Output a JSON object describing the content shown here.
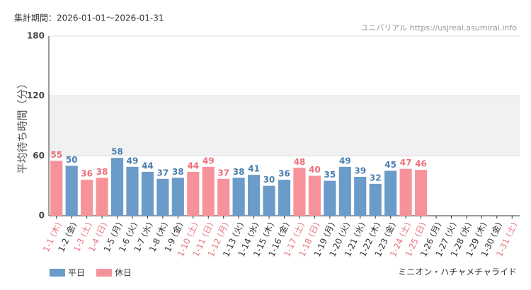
{
  "chart_data": {
    "type": "bar",
    "subtitle": "集計期間：2026-01-01～2026-01-31",
    "source": "ユニバリアル https://usjreal.asumirai.info",
    "ylabel": "平均待ち時間（分）",
    "attraction": "ミニオン・ハチャメチャライド",
    "categories": [
      "1-1 (木)",
      "1-2 (金)",
      "1-3 (土)",
      "1-4 (日)",
      "1-5 (月)",
      "1-6 (火)",
      "1-7 (水)",
      "1-8 (木)",
      "1-9 (金)",
      "1-10 (土)",
      "1-11 (日)",
      "1-12 (月)",
      "1-13 (火)",
      "1-14 (水)",
      "1-15 (木)",
      "1-16 (金)",
      "1-17 (土)",
      "1-18 (日)",
      "1-19 (月)",
      "1-20 (火)",
      "1-21 (水)",
      "1-22 (木)",
      "1-23 (金)",
      "1-24 (土)",
      "1-25 (日)",
      "1-26 (月)",
      "1-27 (火)",
      "1-28 (水)",
      "1-29 (木)",
      "1-30 (金)",
      "1-31 (土)"
    ],
    "category_colors": [
      "#e87880",
      "#333333",
      "#e87880",
      "#e87880",
      "#333333",
      "#333333",
      "#333333",
      "#333333",
      "#333333",
      "#e87880",
      "#e87880",
      "#e87880",
      "#333333",
      "#333333",
      "#333333",
      "#333333",
      "#e87880",
      "#e87880",
      "#333333",
      "#333333",
      "#333333",
      "#333333",
      "#333333",
      "#e87880",
      "#e87880",
      "#333333",
      "#333333",
      "#333333",
      "#333333",
      "#333333",
      "#e87880"
    ],
    "series": [
      {
        "name": "平日",
        "color": "#6b9bc9",
        "label_color": "#4a7fb0",
        "values": [
          null,
          50,
          null,
          null,
          58,
          49,
          44,
          37,
          38,
          null,
          null,
          null,
          38,
          41,
          30,
          36,
          null,
          null,
          35,
          49,
          39,
          32,
          45,
          null,
          null,
          null,
          null,
          null,
          null,
          null,
          null
        ]
      },
      {
        "name": "休日",
        "color": "#f6939a",
        "label_color": "#ec6f79",
        "values": [
          55,
          null,
          36,
          38,
          null,
          null,
          null,
          null,
          null,
          44,
          49,
          37,
          null,
          null,
          null,
          null,
          48,
          40,
          null,
          null,
          null,
          null,
          null,
          47,
          46,
          null,
          null,
          null,
          null,
          null,
          null
        ]
      }
    ],
    "ylim": [
      0,
      180
    ],
    "yticks": [
      0,
      60,
      120,
      180
    ],
    "band": [
      60,
      120
    ],
    "band_color": "#f1f1f1",
    "grid": true
  }
}
